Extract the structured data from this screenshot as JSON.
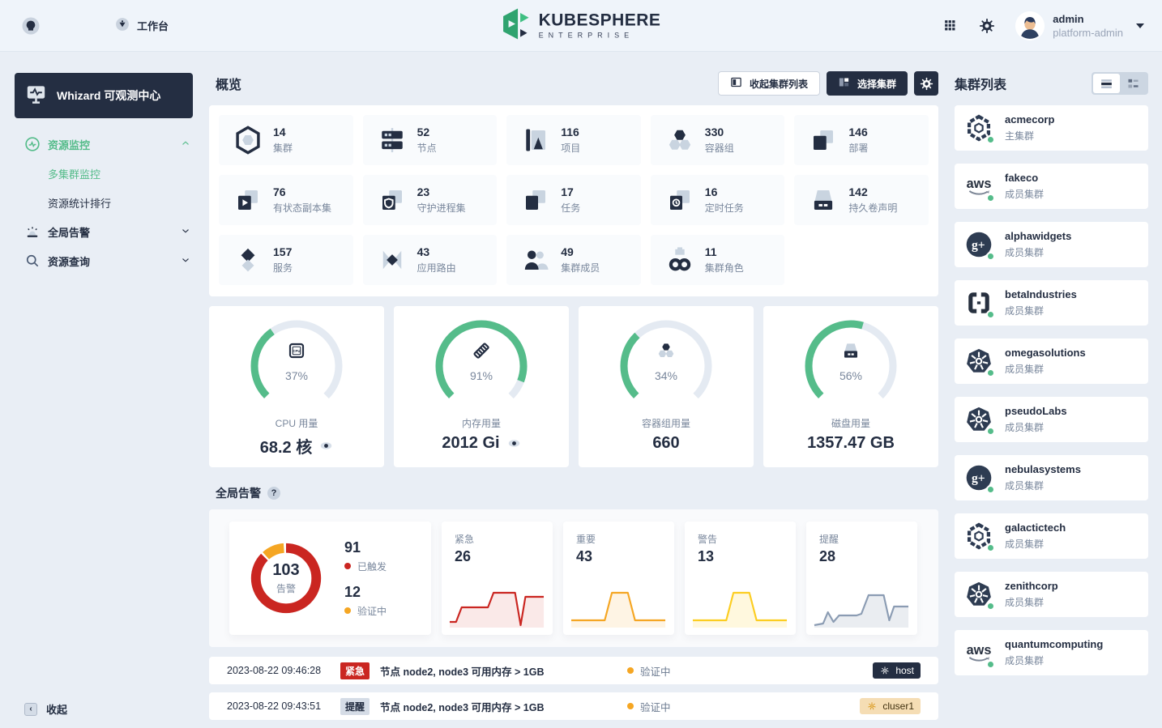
{
  "header": {
    "workbench_label": "工作台",
    "logo_title": "KUBESPHERE",
    "logo_subtitle": "ENTERPRISE",
    "user": {
      "name": "admin",
      "role": "platform-admin"
    }
  },
  "sidebar": {
    "title": "Whizard 可观测中心",
    "items": [
      {
        "label": "资源监控",
        "icon": "monitor",
        "green": true,
        "chevron": "up",
        "children": [
          {
            "label": "多集群监控",
            "selected": true
          },
          {
            "label": "资源统计排行",
            "selected": false
          }
        ]
      },
      {
        "label": "全局告警",
        "icon": "alarm",
        "green": false,
        "chevron": "down",
        "children": []
      },
      {
        "label": "资源查询",
        "icon": "search",
        "green": false,
        "chevron": "down",
        "children": []
      }
    ],
    "collapse_label": "收起"
  },
  "overview": {
    "title": "概览",
    "collapse_clusters_button": "收起集群列表",
    "select_cluster_button": "选择集群",
    "stats": [
      {
        "value": "14",
        "label": "集群",
        "icon": "cluster"
      },
      {
        "value": "52",
        "label": "节点",
        "icon": "node"
      },
      {
        "value": "116",
        "label": "项目",
        "icon": "project"
      },
      {
        "value": "330",
        "label": "容器组",
        "icon": "pod"
      },
      {
        "value": "146",
        "label": "部署",
        "icon": "deployment"
      },
      {
        "value": "76",
        "label": "有状态副本集",
        "icon": "statefulset"
      },
      {
        "value": "23",
        "label": "守护进程集",
        "icon": "daemonset"
      },
      {
        "value": "17",
        "label": "任务",
        "icon": "job"
      },
      {
        "value": "16",
        "label": "定时任务",
        "icon": "cronjob"
      },
      {
        "value": "142",
        "label": "持久卷声明",
        "icon": "pvc"
      },
      {
        "value": "157",
        "label": "服务",
        "icon": "service"
      },
      {
        "value": "43",
        "label": "应用路由",
        "icon": "ingress"
      },
      {
        "value": "49",
        "label": "集群成员",
        "icon": "member"
      },
      {
        "value": "11",
        "label": "集群角色",
        "icon": "role"
      }
    ]
  },
  "gauges": [
    {
      "pct": 37,
      "label": "CPU 用量",
      "value": "68.2 核",
      "icon": "cpu",
      "eye": true
    },
    {
      "pct": 91,
      "label": "内存用量",
      "value": "2012 Gi",
      "icon": "memory",
      "eye": true
    },
    {
      "pct": 34,
      "label": "容器组用量",
      "value": "660",
      "icon": "pod",
      "eye": false
    },
    {
      "pct": 56,
      "label": "磁盘用量",
      "value": "1357.47 GB",
      "icon": "disk",
      "eye": false
    }
  ],
  "alerts": {
    "title": "全局告警",
    "help_glyph": "?",
    "donut": {
      "total": 103,
      "total_label": "告警",
      "segments": [
        {
          "label": "已触发",
          "value": 91,
          "color": "#ca2621"
        },
        {
          "label": "验证中",
          "value": 12,
          "color": "#f5a623"
        }
      ]
    },
    "severities": [
      {
        "label": "紧急",
        "value": 26,
        "color": "#ca2621",
        "fill": "rgba(202,38,33,0.10)",
        "spark": [
          [
            2,
            46
          ],
          [
            10,
            46
          ],
          [
            17,
            28
          ],
          [
            50,
            28
          ],
          [
            57,
            10
          ],
          [
            84,
            10
          ],
          [
            91,
            50
          ],
          [
            97,
            15
          ],
          [
            120,
            15
          ]
        ]
      },
      {
        "label": "重要",
        "value": 43,
        "color": "#f5a623",
        "fill": "rgba(245,166,35,0.12)",
        "spark": [
          [
            2,
            44
          ],
          [
            44,
            44
          ],
          [
            53,
            10
          ],
          [
            73,
            10
          ],
          [
            82,
            44
          ],
          [
            120,
            44
          ]
        ]
      },
      {
        "label": "警告",
        "value": 13,
        "color": "#fccd21",
        "fill": "rgba(252,205,33,0.15)",
        "spark": [
          [
            2,
            44
          ],
          [
            44,
            44
          ],
          [
            53,
            10
          ],
          [
            73,
            10
          ],
          [
            82,
            44
          ],
          [
            120,
            44
          ]
        ]
      },
      {
        "label": "提醒",
        "value": 28,
        "color": "#8b9cb3",
        "fill": "rgba(139,156,179,0.18)",
        "spark": [
          [
            2,
            50
          ],
          [
            13,
            48
          ],
          [
            19,
            34
          ],
          [
            26,
            46
          ],
          [
            33,
            38
          ],
          [
            55,
            38
          ],
          [
            61,
            36
          ],
          [
            70,
            13
          ],
          [
            89,
            13
          ],
          [
            96,
            44
          ],
          [
            102,
            27
          ],
          [
            120,
            27
          ]
        ]
      }
    ],
    "rows": [
      {
        "time": "2023-08-22 09:46:28",
        "severity": "紧急",
        "severity_type": "critical",
        "message": "节点 node2, node3 可用内存 > 1GB",
        "status": "验证中",
        "target": "host",
        "target_type": "dark"
      },
      {
        "time": "2023-08-22 09:43:51",
        "severity": "提醒",
        "severity_type": "info",
        "message": "节点 node2, node3 可用内存 > 1GB",
        "status": "验证中",
        "target": "cluser1",
        "target_type": "orange"
      }
    ]
  },
  "clusters": {
    "title": "集群列表",
    "items": [
      {
        "name": "acmecorp",
        "role": "主集群",
        "logo": "hex"
      },
      {
        "name": "fakeco",
        "role": "成员集群",
        "logo": "aws"
      },
      {
        "name": "alphawidgets",
        "role": "成员集群",
        "logo": "gplus"
      },
      {
        "name": "betaIndustries",
        "role": "成员集群",
        "logo": "brackets"
      },
      {
        "name": "omegasolutions",
        "role": "成员集群",
        "logo": "k8s"
      },
      {
        "name": "pseudoLabs",
        "role": "成员集群",
        "logo": "k8s"
      },
      {
        "name": "nebulasystems",
        "role": "成员集群",
        "logo": "gplus"
      },
      {
        "name": "galactictech",
        "role": "成员集群",
        "logo": "hex"
      },
      {
        "name": "zenithcorp",
        "role": "成员集群",
        "logo": "k8s"
      },
      {
        "name": "quantumcomputing",
        "role": "成员集群",
        "logo": "aws"
      }
    ]
  },
  "colors": {
    "accent_green": "#55bc8a",
    "dark": "#242e42",
    "critical": "#ca2621",
    "warning_orange": "#f5a623",
    "warning_yellow": "#fccd21",
    "muted": "#79879c"
  }
}
